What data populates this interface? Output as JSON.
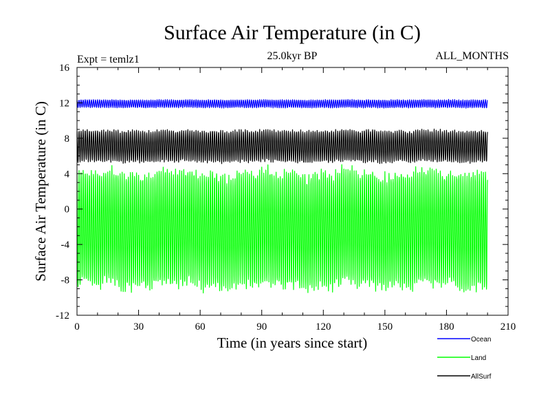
{
  "chart_data": {
    "type": "line",
    "title": "Surface Air Temperature (in C)",
    "subtitle_left": "Expt = temlz1",
    "subtitle_center": "25.0kyr BP",
    "subtitle_right": "ALL_MONTHS",
    "xlabel": "Time (in years since start)",
    "ylabel": "Surface Air Temperature (in C)",
    "xlim": [
      0,
      210
    ],
    "ylim": [
      -12,
      16
    ],
    "xticks": [
      0,
      30,
      60,
      90,
      120,
      150,
      180,
      210
    ],
    "yticks": [
      -12,
      -8,
      -4,
      0,
      4,
      8,
      12,
      16
    ],
    "x_extent": [
      0,
      200
    ],
    "samples_per_year": 12,
    "grid": false,
    "legend_position": "bottom-right",
    "series": [
      {
        "name": "Ocean",
        "color": "#0000ff",
        "mean": 11.9,
        "amplitude": 0.45,
        "min": 10.9,
        "max": 12.9
      },
      {
        "name": "Land",
        "color": "#00ff00",
        "mean": -2.3,
        "amplitude": 6.6,
        "min": -9.7,
        "max": 5.2
      },
      {
        "name": "AllSurf",
        "color": "#000000",
        "mean": 7.1,
        "amplitude": 1.8,
        "min": 4.9,
        "max": 9.6
      }
    ]
  }
}
